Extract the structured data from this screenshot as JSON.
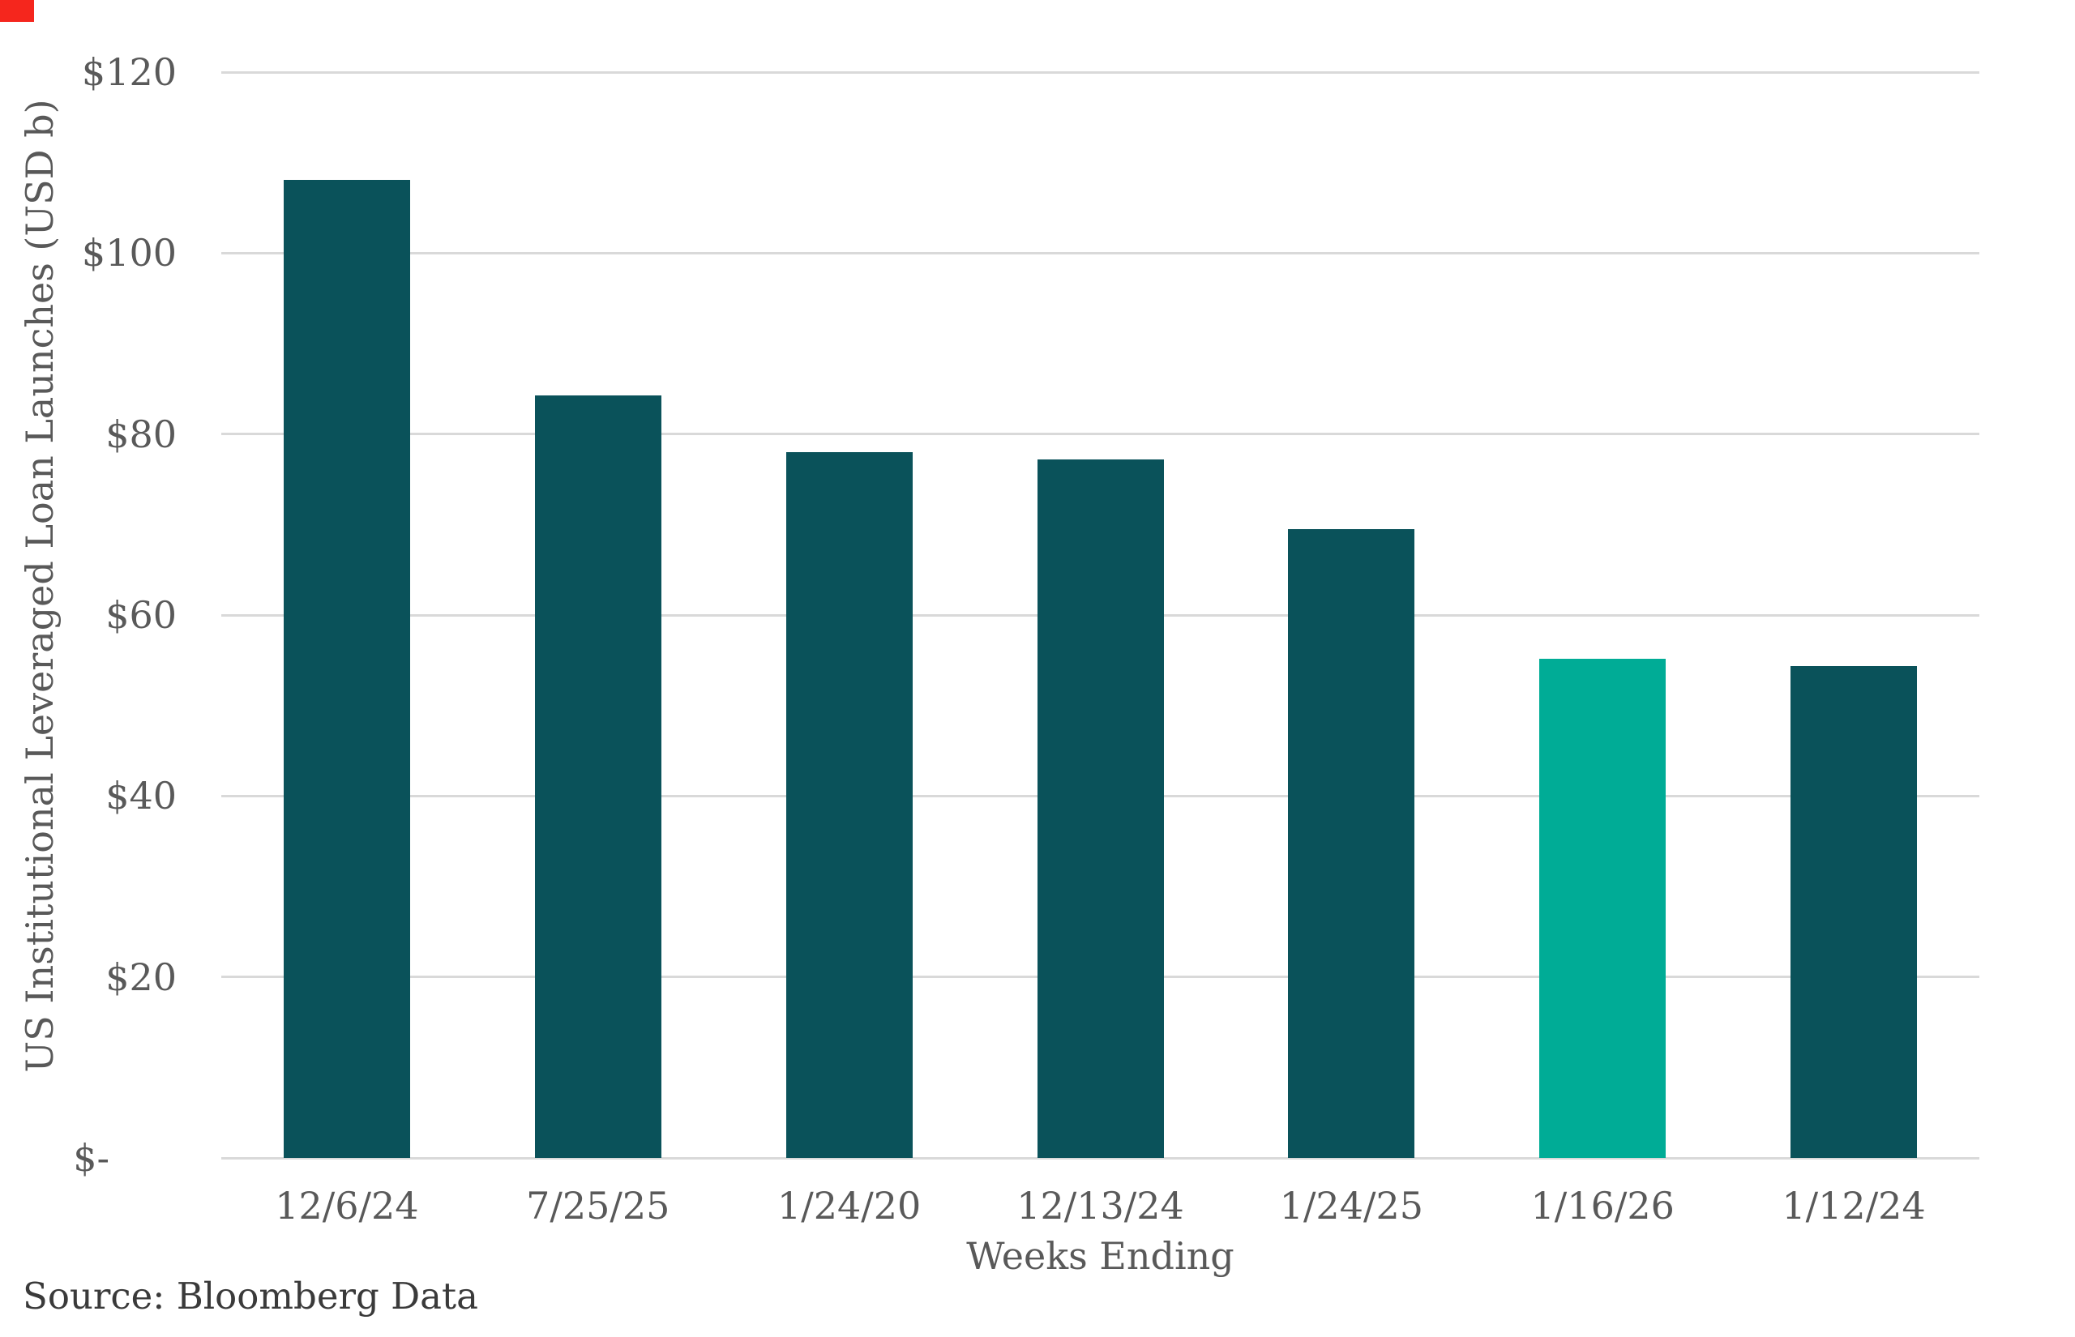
{
  "chart_data": {
    "type": "bar",
    "title": "",
    "categories": [
      "12/6/24",
      "7/25/25",
      "1/24/20",
      "12/13/24",
      "1/24/25",
      "1/16/26",
      "1/12/24"
    ],
    "values": [
      108.1,
      84.3,
      78.0,
      77.2,
      69.5,
      55.2,
      54.4
    ],
    "bar_colors": [
      "#0A525A",
      "#0A525A",
      "#0A525A",
      "#0A525A",
      "#0A525A",
      "#00AC96",
      "#0A525A"
    ],
    "highlighted_category": "1/16/26",
    "xlabel": "Weeks Ending",
    "ylabel": "US Institutional Leveraged Loan Launches (USD b)",
    "ylim": [
      0,
      120
    ],
    "ytick_values": [
      0,
      20,
      40,
      60,
      80,
      100,
      120
    ],
    "ytick_labels": [
      "$-",
      "$20",
      "$40",
      "$60",
      "$80",
      "$100",
      "$120"
    ],
    "grid": "horizontal gridlines at each $20 step",
    "legend": "none"
  },
  "source_note": "Source: Bloomberg Data",
  "colors": {
    "bar_default": "#0A525A",
    "bar_highlight": "#00AC96",
    "tick_text": "#595959",
    "source_text": "#3A3A3A",
    "gridline": "#D9D9D9",
    "background": "#FFFFFF",
    "corner_marker": "#F5261D"
  }
}
